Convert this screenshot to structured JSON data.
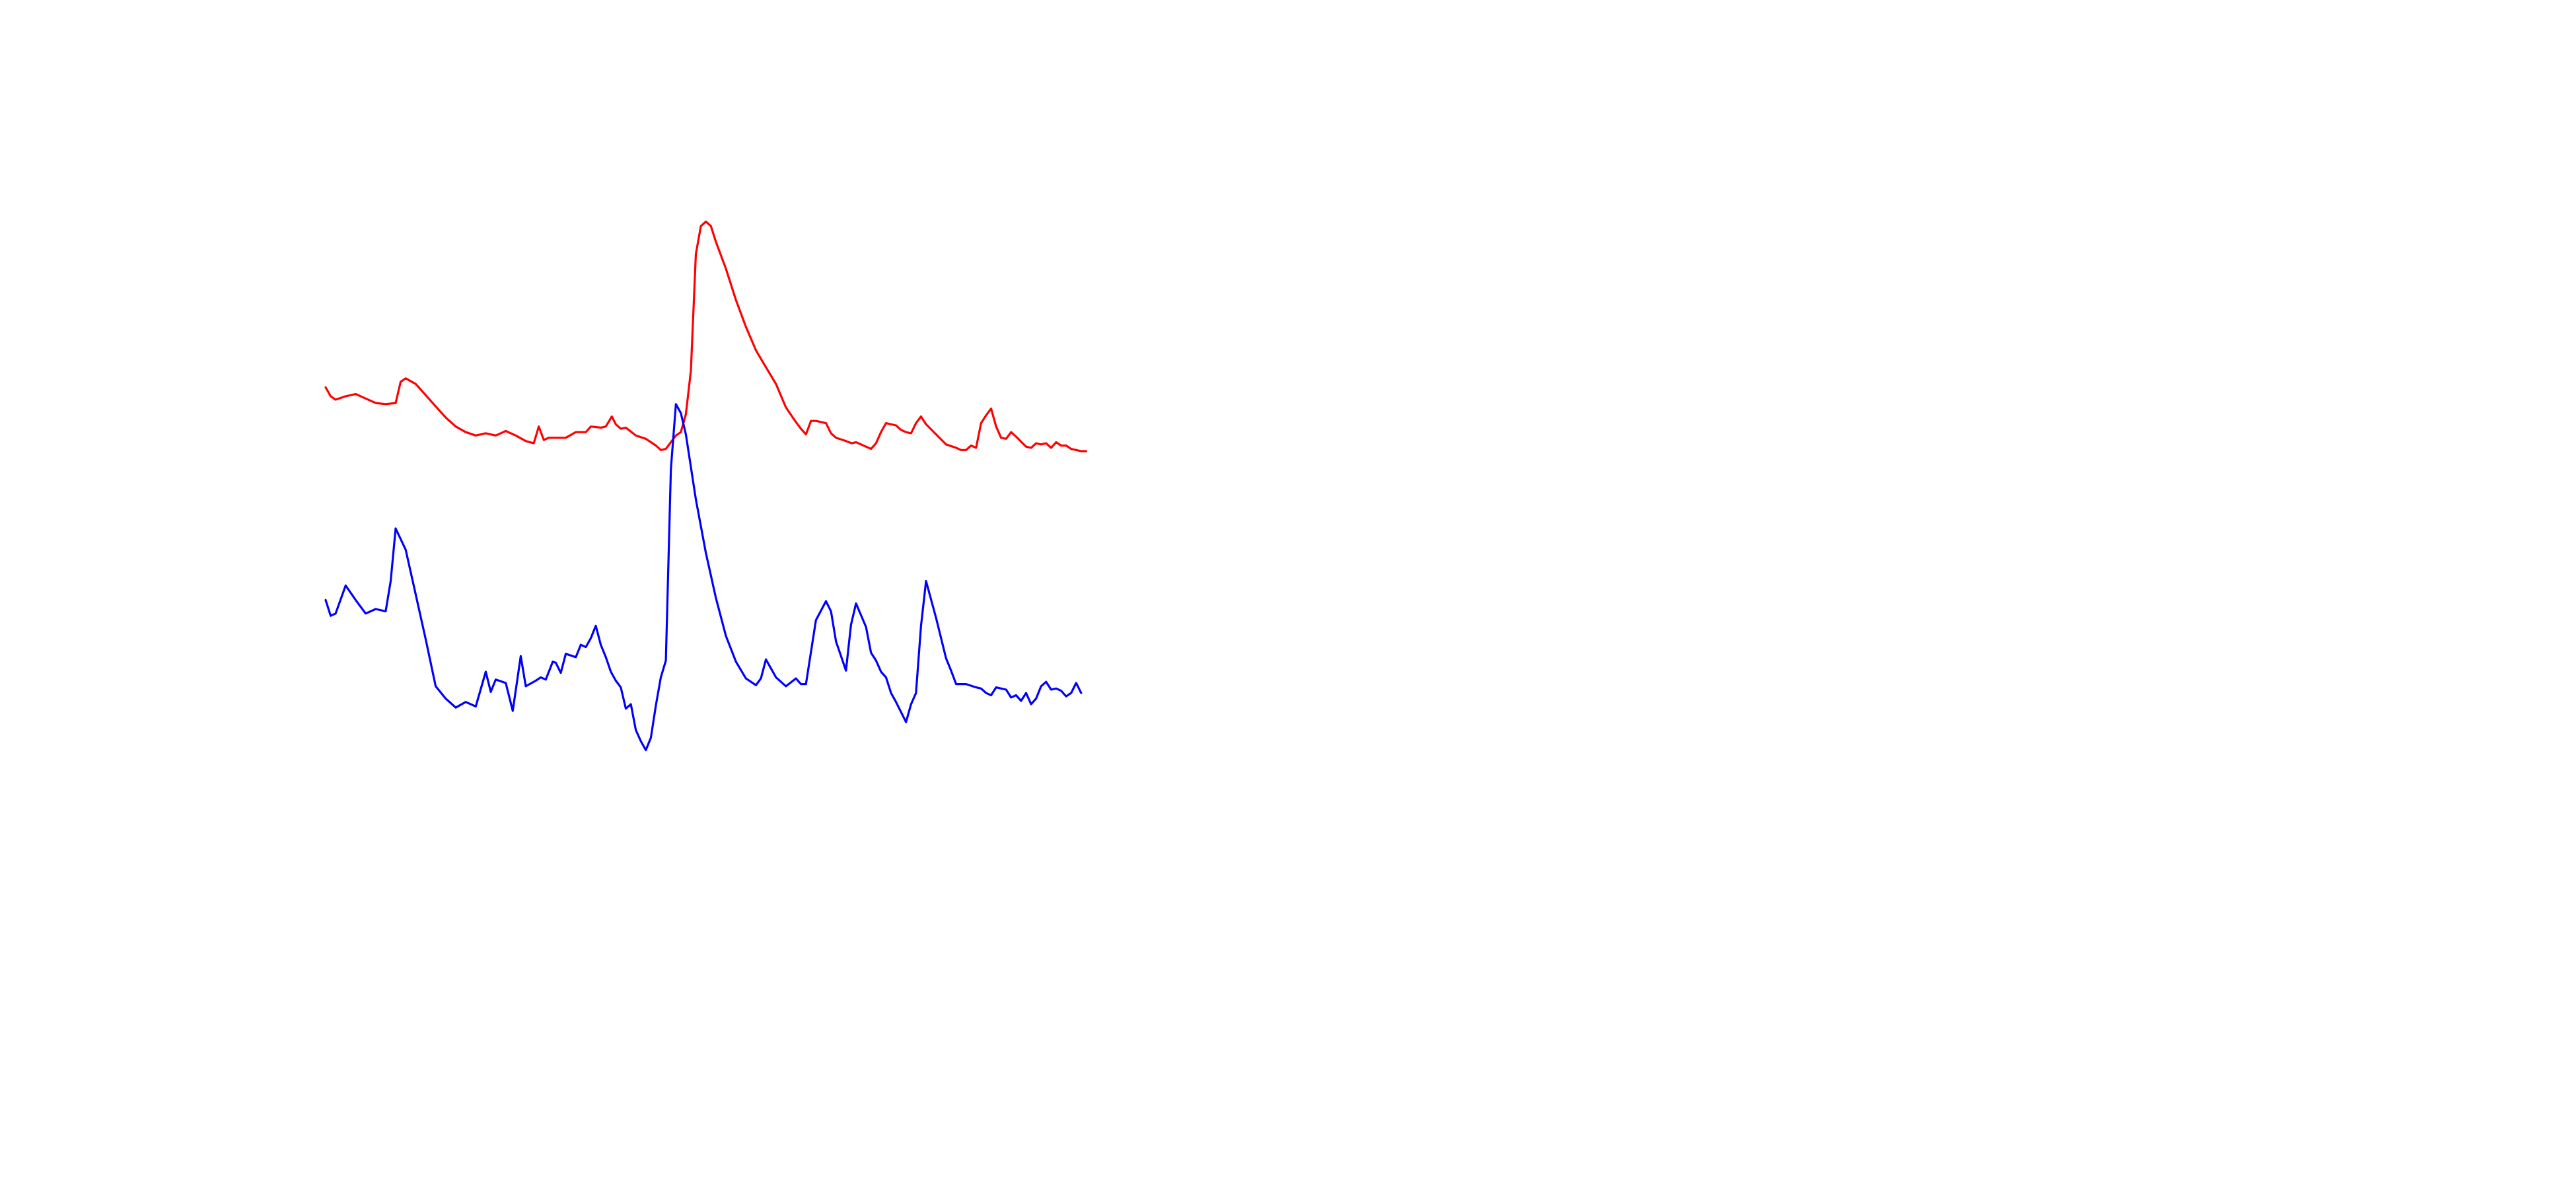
{
  "chart_data": {
    "type": "line",
    "title": "",
    "xlabel": "",
    "ylabel": "",
    "grid": false,
    "axes_visible": false,
    "legend": "none",
    "xlim": [
      0,
      100
    ],
    "ylim": [
      0,
      100
    ],
    "series": [
      {
        "color": "#ff0000",
        "points": [
          [
            0,
            71.6
          ],
          [
            0.5,
            70.8
          ],
          [
            1,
            70.5
          ],
          [
            2,
            70.8
          ],
          [
            3,
            71
          ],
          [
            4,
            70.6
          ],
          [
            5,
            70.2
          ],
          [
            6,
            70.1
          ],
          [
            7,
            70.2
          ],
          [
            7.5,
            72.1
          ],
          [
            8,
            72.4
          ],
          [
            9,
            71.9
          ],
          [
            10,
            70.9
          ],
          [
            11,
            69.9
          ],
          [
            12,
            68.9
          ],
          [
            13,
            68.1
          ],
          [
            14,
            67.6
          ],
          [
            15,
            67.3
          ],
          [
            16,
            67.5
          ],
          [
            17,
            67.3
          ],
          [
            18,
            67.7
          ],
          [
            19,
            67.3
          ],
          [
            20,
            66.8
          ],
          [
            20.8,
            66.6
          ],
          [
            21.3,
            68.1
          ],
          [
            21.8,
            66.9
          ],
          [
            22.3,
            67.1
          ],
          [
            23.5,
            67.1
          ],
          [
            24,
            67.1
          ],
          [
            25,
            67.6
          ],
          [
            26,
            67.6
          ],
          [
            26.5,
            68.1
          ],
          [
            27.5,
            68
          ],
          [
            28,
            68.1
          ],
          [
            28.6,
            69
          ],
          [
            29,
            68.3
          ],
          [
            29.5,
            67.9
          ],
          [
            30,
            68
          ],
          [
            31,
            67.3
          ],
          [
            32,
            67
          ],
          [
            33,
            66.4
          ],
          [
            33.5,
            66
          ],
          [
            34,
            66.1
          ],
          [
            35,
            67.3
          ],
          [
            35.5,
            67.6
          ],
          [
            36,
            69.2
          ],
          [
            36.5,
            73.1
          ],
          [
            37,
            83.5
          ],
          [
            37.5,
            86
          ],
          [
            38,
            86.4
          ],
          [
            38.5,
            86
          ],
          [
            39,
            84.6
          ],
          [
            40,
            82.2
          ],
          [
            41,
            79.4
          ],
          [
            42,
            77
          ],
          [
            43,
            74.9
          ],
          [
            44,
            73.4
          ],
          [
            45,
            71.9
          ],
          [
            46,
            69.8
          ],
          [
            47,
            68.5
          ],
          [
            47.5,
            67.9
          ],
          [
            48,
            67.4
          ],
          [
            48.5,
            68.6
          ],
          [
            49,
            68.6
          ],
          [
            50,
            68.4
          ],
          [
            50.5,
            67.5
          ],
          [
            51,
            67.1
          ],
          [
            52,
            66.8
          ],
          [
            52.6,
            66.6
          ],
          [
            53,
            66.7
          ],
          [
            54,
            66.3
          ],
          [
            54.5,
            66.1
          ],
          [
            55,
            66.6
          ],
          [
            55.5,
            67.6
          ],
          [
            56,
            68.4
          ],
          [
            57,
            68.2
          ],
          [
            57.5,
            67.8
          ],
          [
            58,
            67.6
          ],
          [
            58.5,
            67.5
          ],
          [
            59,
            68.4
          ],
          [
            59.5,
            69
          ],
          [
            60,
            68.3
          ],
          [
            61,
            67.4
          ],
          [
            62,
            66.5
          ],
          [
            63,
            66.2
          ],
          [
            63.5,
            66
          ],
          [
            64,
            66
          ],
          [
            64.5,
            66.4
          ],
          [
            65,
            66.2
          ],
          [
            65.5,
            68.4
          ],
          [
            66,
            69.1
          ],
          [
            66.5,
            69.7
          ],
          [
            67,
            68.1
          ],
          [
            67.5,
            67.1
          ],
          [
            68,
            67
          ],
          [
            68.5,
            67.6
          ],
          [
            69,
            67.2
          ],
          [
            70,
            66.3
          ],
          [
            70.5,
            66.2
          ],
          [
            71,
            66.6
          ],
          [
            71.5,
            66.5
          ],
          [
            72,
            66.6
          ],
          [
            72.5,
            66.2
          ],
          [
            73,
            66.7
          ],
          [
            73.5,
            66.4
          ],
          [
            74,
            66.4
          ],
          [
            74.5,
            66.1
          ],
          [
            75,
            66
          ],
          [
            75.5,
            65.9
          ],
          [
            76,
            65.9
          ]
        ]
      },
      {
        "color": "#0000ff",
        "points": [
          [
            0,
            52.6
          ],
          [
            0.5,
            51.2
          ],
          [
            1,
            51.4
          ],
          [
            2,
            53.9
          ],
          [
            3,
            52.6
          ],
          [
            4,
            51.4
          ],
          [
            5,
            51.8
          ],
          [
            6,
            51.6
          ],
          [
            6.5,
            54.3
          ],
          [
            7,
            59
          ],
          [
            8,
            57.1
          ],
          [
            9,
            53.1
          ],
          [
            10,
            49.1
          ],
          [
            11,
            44.9
          ],
          [
            12,
            43.8
          ],
          [
            13,
            43
          ],
          [
            14,
            43.5
          ],
          [
            15,
            43.1
          ],
          [
            16,
            46.2
          ],
          [
            16.5,
            44.4
          ],
          [
            17,
            45.5
          ],
          [
            18,
            45.2
          ],
          [
            18.7,
            42.7
          ],
          [
            19.5,
            47.6
          ],
          [
            20,
            44.9
          ],
          [
            21,
            45.4
          ],
          [
            21.5,
            45.7
          ],
          [
            22,
            45.5
          ],
          [
            22.7,
            47.1
          ],
          [
            23,
            47
          ],
          [
            23.5,
            46.1
          ],
          [
            24,
            47.8
          ],
          [
            25,
            47.5
          ],
          [
            25.5,
            48.6
          ],
          [
            26,
            48.4
          ],
          [
            26.5,
            49.2
          ],
          [
            27,
            50.3
          ],
          [
            27.5,
            48.6
          ],
          [
            28,
            47.5
          ],
          [
            28.5,
            46.2
          ],
          [
            29,
            45.4
          ],
          [
            29.5,
            44.8
          ],
          [
            30,
            42.9
          ],
          [
            30.5,
            43.3
          ],
          [
            31,
            41
          ],
          [
            31.5,
            40
          ],
          [
            32,
            39.2
          ],
          [
            32.5,
            40.3
          ],
          [
            33,
            43.2
          ],
          [
            33.5,
            45.7
          ],
          [
            34,
            47.2
          ],
          [
            34.5,
            64.3
          ],
          [
            35,
            70.1
          ],
          [
            35.5,
            69.3
          ],
          [
            36,
            67.4
          ],
          [
            37,
            61.6
          ],
          [
            38,
            56.8
          ],
          [
            39,
            52.8
          ],
          [
            40,
            49.4
          ],
          [
            41,
            47.1
          ],
          [
            42,
            45.6
          ],
          [
            43,
            45
          ],
          [
            43.5,
            45.6
          ],
          [
            44,
            47.3
          ],
          [
            45,
            45.7
          ],
          [
            46,
            44.9
          ],
          [
            47,
            45.6
          ],
          [
            47.5,
            45.1
          ],
          [
            48,
            45.1
          ],
          [
            49,
            50.8
          ],
          [
            50,
            52.5
          ],
          [
            50.5,
            51.6
          ],
          [
            51,
            48.9
          ],
          [
            52,
            46.3
          ],
          [
            52.5,
            50.4
          ],
          [
            53,
            52.3
          ],
          [
            54,
            50.2
          ],
          [
            54.5,
            47.9
          ],
          [
            55,
            47.2
          ],
          [
            55.5,
            46.2
          ],
          [
            56,
            45.7
          ],
          [
            56.5,
            44.3
          ],
          [
            57,
            43.5
          ],
          [
            57.5,
            42.6
          ],
          [
            58,
            41.7
          ],
          [
            58.5,
            43.3
          ],
          [
            59,
            44.3
          ],
          [
            59.5,
            50.3
          ],
          [
            60,
            54.3
          ],
          [
            61,
            51
          ],
          [
            62,
            47.4
          ],
          [
            62.5,
            46.3
          ],
          [
            63,
            45.1
          ],
          [
            64,
            45.1
          ],
          [
            65,
            44.8
          ],
          [
            65.5,
            44.7
          ],
          [
            66,
            44.3
          ],
          [
            66.5,
            44.1
          ],
          [
            67,
            44.8
          ],
          [
            67.5,
            44.7
          ],
          [
            68,
            44.6
          ],
          [
            68.5,
            43.9
          ],
          [
            69,
            44.1
          ],
          [
            69.5,
            43.6
          ],
          [
            70,
            44.3
          ],
          [
            70.5,
            43.3
          ],
          [
            71,
            43.8
          ],
          [
            71.5,
            44.9
          ],
          [
            72,
            45.3
          ],
          [
            72.5,
            44.6
          ],
          [
            73,
            44.7
          ],
          [
            73.5,
            44.5
          ],
          [
            74,
            44
          ],
          [
            74.5,
            44.3
          ],
          [
            75,
            45.2
          ],
          [
            75.5,
            44.3
          ]
        ]
      }
    ]
  }
}
